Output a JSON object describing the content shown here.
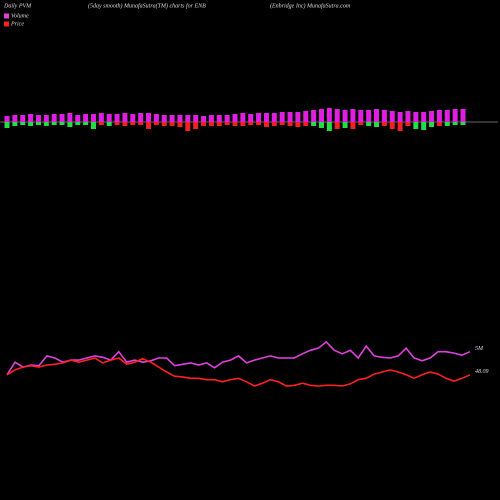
{
  "chart_data": [
    {
      "type": "bar",
      "title": "Daily PVM",
      "subtitle": "(5day smooth) MunafaSutra(TM) charts for ENB",
      "source": "(Enbridge  Inc) MunafaSutra.com",
      "ylim": [
        -22,
        22
      ],
      "series": [
        {
          "color": "#e020e0",
          "values": [
            6,
            7,
            7,
            8,
            7,
            7,
            8,
            8,
            9,
            7,
            8,
            8,
            9,
            8,
            8,
            9,
            8,
            9,
            9,
            8,
            7,
            7,
            7,
            7,
            7,
            6,
            7,
            7,
            7,
            8,
            9,
            8,
            9,
            9,
            9,
            10,
            10,
            10,
            11,
            12,
            13,
            14,
            13,
            12,
            13,
            12,
            12,
            13,
            12,
            11,
            10,
            11,
            10,
            10,
            11,
            12,
            12,
            13,
            13
          ]
        },
        {
          "values": [
            -6,
            -4,
            -3,
            -4,
            -3,
            -4,
            -3,
            -3,
            -5,
            -3,
            -3,
            -7,
            -3,
            -4,
            -3,
            -4,
            -3,
            -3,
            -7,
            -3,
            -4,
            -4,
            -5,
            -9,
            -7,
            -4,
            -4,
            -4,
            -3,
            -4,
            -4,
            -3,
            -3,
            -5,
            -4,
            -3,
            -4,
            -5,
            -4,
            -4,
            -6,
            -9,
            -7,
            -6,
            -7,
            -3,
            -4,
            -5,
            -4,
            -7,
            -9,
            -4,
            -7,
            -8,
            -5,
            -4,
            -4,
            -3,
            -3
          ],
          "colors": [
            "#22dd44",
            "#22dd44",
            "#22dd44",
            "#22dd44",
            "#22dd44",
            "#22dd44",
            "#22dd44",
            "#22dd44",
            "#22dd44",
            "#22dd44",
            "#22dd44",
            "#22dd44",
            "#ee2222",
            "#22dd44",
            "#ee2222",
            "#ee2222",
            "#ee2222",
            "#ee2222",
            "#ee2222",
            "#ee2222",
            "#ee2222",
            "#ee2222",
            "#ee2222",
            "#ee2222",
            "#ee2222",
            "#ee2222",
            "#ee2222",
            "#ee2222",
            "#ee2222",
            "#ee2222",
            "#ee2222",
            "#ee2222",
            "#ee2222",
            "#ee2222",
            "#ee2222",
            "#ee2222",
            "#ee2222",
            "#ee2222",
            "#ee2222",
            "#22dd44",
            "#22dd44",
            "#22dd44",
            "#ee2222",
            "#22dd44",
            "#ee2222",
            "#ee2222",
            "#22dd44",
            "#22dd44",
            "#ee2222",
            "#ee2222",
            "#ee2222",
            "#ee2222",
            "#22dd44",
            "#22dd44",
            "#22dd44",
            "#ee2222",
            "#22dd44",
            "#22dd44",
            "#22dd44"
          ]
        }
      ]
    },
    {
      "type": "line",
      "ylim": [
        0,
        100
      ],
      "legend": "top-left",
      "series": [
        {
          "name": "Volume",
          "color": "#e040e0",
          "end_label": "5M",
          "values": [
            36,
            54,
            47,
            50,
            49,
            63,
            60,
            54,
            57,
            57,
            60,
            63,
            61,
            57,
            69,
            54,
            57,
            54,
            56,
            60,
            60,
            49,
            51,
            53,
            50,
            53,
            46,
            54,
            57,
            63,
            53,
            57,
            60,
            63,
            60,
            60,
            60,
            66,
            71,
            74,
            83,
            71,
            66,
            71,
            60,
            77,
            63,
            61,
            60,
            63,
            74,
            60,
            56,
            60,
            69,
            69,
            67,
            64,
            69
          ]
        },
        {
          "name": "Price",
          "color": "#ff2020",
          "end_label": "48.09",
          "values": [
            36,
            43,
            47,
            49,
            47,
            50,
            51,
            53,
            57,
            54,
            57,
            60,
            53,
            57,
            60,
            51,
            54,
            59,
            54,
            47,
            40,
            34,
            33,
            31,
            31,
            29,
            29,
            26,
            29,
            31,
            26,
            20,
            24,
            29,
            26,
            20,
            21,
            24,
            21,
            20,
            21,
            21,
            20,
            23,
            29,
            31,
            37,
            40,
            43,
            40,
            36,
            31,
            36,
            40,
            37,
            31,
            27,
            31,
            36
          ]
        }
      ]
    }
  ]
}
